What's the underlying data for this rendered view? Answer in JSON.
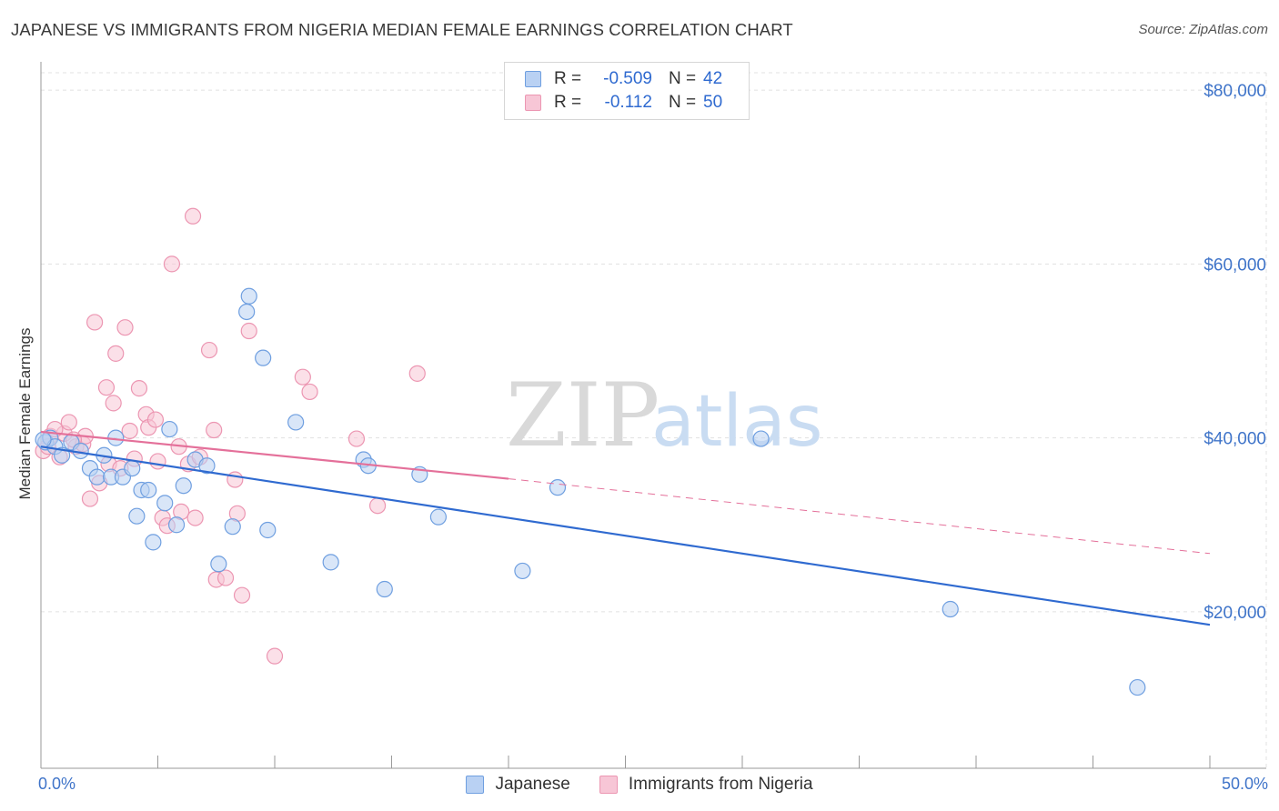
{
  "title": "JAPANESE VS IMMIGRANTS FROM NIGERIA MEDIAN FEMALE EARNINGS CORRELATION CHART",
  "source": "Source: ZipAtlas.com",
  "watermark": {
    "zip": "ZIP",
    "atlas": "atlas"
  },
  "colors": {
    "japanese_fill": "#b9d1f3",
    "japanese_stroke": "#6f9fe0",
    "japanese_line": "#2f6ad0",
    "nigeria_fill": "#f7c6d6",
    "nigeria_stroke": "#ec96b2",
    "nigeria_line": "#e4709a",
    "axis_text": "#3f74c9",
    "grid": "#e1e1e1"
  },
  "legend": {
    "rows": [
      {
        "series": "Japanese",
        "r_label": "R =",
        "r_value": "-0.509",
        "n_label": "N =",
        "n_value": "42"
      },
      {
        "series": "Immigrants from Nigeria",
        "r_label": "R =",
        "r_value": "-0.112",
        "n_label": "N =",
        "n_value": "50"
      }
    ]
  },
  "bottom_legend": {
    "japanese": "Japanese",
    "nigeria": "Immigrants from Nigeria"
  },
  "chart_data": {
    "type": "scatter",
    "title": "JAPANESE VS IMMIGRANTS FROM NIGERIA MEDIAN FEMALE EARNINGS CORRELATION CHART",
    "xlabel": "",
    "ylabel": "Median Female Earnings",
    "xlim": [
      0,
      50
    ],
    "ylim": [
      2000,
      82000
    ],
    "x_tick_labels": [
      "0.0%",
      "50.0%"
    ],
    "y_ticks": [
      20000,
      40000,
      60000,
      80000
    ],
    "y_tick_labels": [
      "$20,000",
      "$40,000",
      "$60,000",
      "$80,000"
    ],
    "grid": true,
    "series": [
      {
        "name": "Japanese",
        "points": [
          [
            0.2,
            39500
          ],
          [
            0.4,
            40000
          ],
          [
            0.6,
            39000
          ],
          [
            0.9,
            38000
          ],
          [
            1.3,
            39500
          ],
          [
            1.7,
            38500
          ],
          [
            2.1,
            36500
          ],
          [
            2.4,
            35500
          ],
          [
            2.7,
            38000
          ],
          [
            3.0,
            35500
          ],
          [
            3.2,
            40000
          ],
          [
            3.5,
            35500
          ],
          [
            3.9,
            36500
          ],
          [
            4.1,
            31000
          ],
          [
            4.3,
            34000
          ],
          [
            4.6,
            34000
          ],
          [
            4.8,
            28000
          ],
          [
            5.3,
            32500
          ],
          [
            5.5,
            41000
          ],
          [
            5.8,
            30000
          ],
          [
            6.1,
            34500
          ],
          [
            6.6,
            37500
          ],
          [
            7.1,
            36800
          ],
          [
            7.6,
            25500
          ],
          [
            8.2,
            29800
          ],
          [
            8.8,
            54500
          ],
          [
            8.9,
            56300
          ],
          [
            9.5,
            49200
          ],
          [
            9.7,
            29400
          ],
          [
            10.9,
            41800
          ],
          [
            12.4,
            25700
          ],
          [
            13.8,
            37500
          ],
          [
            14.0,
            36800
          ],
          [
            14.7,
            22600
          ],
          [
            16.2,
            35800
          ],
          [
            17.0,
            30900
          ],
          [
            20.6,
            24700
          ],
          [
            22.1,
            34300
          ],
          [
            30.8,
            39900
          ],
          [
            38.9,
            20300
          ],
          [
            46.9,
            11300
          ],
          [
            0.1,
            39800
          ]
        ]
      },
      {
        "name": "Immigrants from Nigeria",
        "points": [
          [
            0.1,
            38500
          ],
          [
            0.4,
            40200
          ],
          [
            0.8,
            37800
          ],
          [
            1.0,
            40500
          ],
          [
            1.2,
            41800
          ],
          [
            1.5,
            39000
          ],
          [
            1.8,
            39300
          ],
          [
            1.9,
            40200
          ],
          [
            2.1,
            33000
          ],
          [
            2.3,
            53300
          ],
          [
            2.5,
            34800
          ],
          [
            2.8,
            45800
          ],
          [
            2.9,
            37000
          ],
          [
            3.1,
            44000
          ],
          [
            3.2,
            49700
          ],
          [
            3.4,
            36500
          ],
          [
            3.6,
            52700
          ],
          [
            3.8,
            40800
          ],
          [
            4.0,
            37600
          ],
          [
            4.2,
            45700
          ],
          [
            4.5,
            42700
          ],
          [
            4.6,
            41200
          ],
          [
            4.9,
            42100
          ],
          [
            5.0,
            37300
          ],
          [
            5.2,
            30800
          ],
          [
            5.4,
            29900
          ],
          [
            5.6,
            60000
          ],
          [
            5.9,
            39000
          ],
          [
            6.0,
            31500
          ],
          [
            6.3,
            37000
          ],
          [
            6.5,
            65500
          ],
          [
            6.6,
            30800
          ],
          [
            6.8,
            37800
          ],
          [
            7.2,
            50100
          ],
          [
            7.4,
            40900
          ],
          [
            7.5,
            23700
          ],
          [
            7.9,
            23900
          ],
          [
            8.3,
            35200
          ],
          [
            8.4,
            31300
          ],
          [
            8.6,
            21900
          ],
          [
            8.9,
            52300
          ],
          [
            10.0,
            14900
          ],
          [
            11.2,
            47000
          ],
          [
            11.5,
            45300
          ],
          [
            13.5,
            39900
          ],
          [
            14.4,
            32200
          ],
          [
            16.1,
            47400
          ],
          [
            0.3,
            39000
          ],
          [
            0.6,
            41000
          ],
          [
            1.4,
            39800
          ]
        ]
      }
    ],
    "trend_lines": [
      {
        "series": "Japanese",
        "x": [
          0,
          50
        ],
        "y": [
          39000,
          18500
        ],
        "style": "solid"
      },
      {
        "series": "Immigrants from Nigeria",
        "x": [
          0,
          20
        ],
        "y": [
          40700,
          35300
        ],
        "style": "solid"
      },
      {
        "series": "Immigrants from Nigeria",
        "x": [
          20,
          50
        ],
        "y": [
          35300,
          26700
        ],
        "style": "dashed"
      }
    ]
  }
}
